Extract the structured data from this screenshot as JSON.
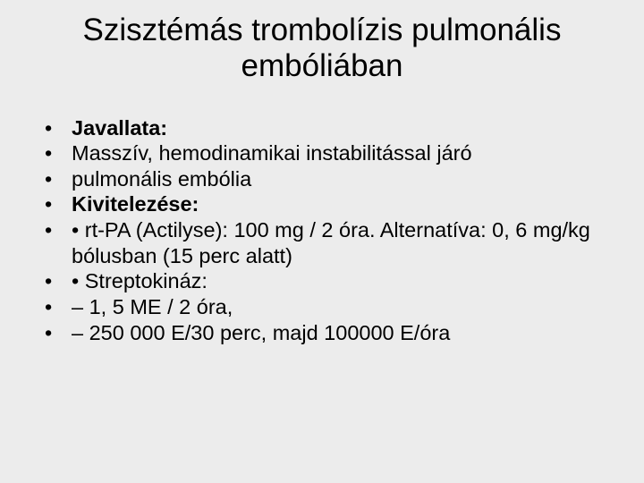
{
  "background_color": "#ececec",
  "text_color": "#000000",
  "title_fontsize": 35,
  "body_fontsize": 23.5,
  "title": "Szisztémás trombolízis pulmonális embóliában",
  "bullets": [
    {
      "text": "Javallata:",
      "bold": true
    },
    {
      "text": "Masszív, hemodinamikai instabilitással járó",
      "bold": false
    },
    {
      "text": "pulmonális embólia",
      "bold": false
    },
    {
      "text": "Kivitelezése:",
      "bold": true
    },
    {
      "text": "• rt-PA (Actilyse): 100 mg / 2 óra. Alternatíva: 0, 6 mg/kg bólusban (15 perc alatt)",
      "bold": false
    },
    {
      "text": "• Streptokináz:",
      "bold": false
    },
    {
      "text": "– 1, 5 ME / 2 óra,",
      "bold": false
    },
    {
      "text": "– 250 000 E/30 perc, majd 100000 E/óra",
      "bold": false
    }
  ]
}
